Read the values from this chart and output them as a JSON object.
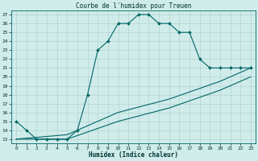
{
  "title": "Courbe de l'humidex pour Treuen",
  "xlabel": "Humidex (Indice chaleur)",
  "bg_color": "#d0ecea",
  "line_color": "#006666",
  "grid_color": "#b0d4d0",
  "xlim": [
    -0.5,
    23.5
  ],
  "ylim": [
    12.5,
    27.5
  ],
  "xticks": [
    0,
    1,
    2,
    3,
    4,
    5,
    6,
    7,
    8,
    9,
    10,
    11,
    12,
    13,
    14,
    15,
    16,
    17,
    18,
    19,
    20,
    21,
    22,
    23
  ],
  "yticks": [
    13,
    14,
    15,
    16,
    17,
    18,
    19,
    20,
    21,
    22,
    23,
    24,
    25,
    26,
    27
  ],
  "main_line": {
    "x": [
      0,
      1,
      2,
      3,
      4,
      5,
      6,
      7,
      8,
      9,
      10,
      11,
      12,
      13,
      14,
      15,
      16,
      17,
      18,
      19,
      20,
      21,
      22,
      23
    ],
    "y": [
      15,
      14,
      13,
      13,
      13,
      13,
      14,
      18,
      23,
      24,
      26,
      26,
      27,
      27,
      26,
      26,
      25,
      25,
      22,
      21,
      21,
      21,
      21,
      21
    ]
  },
  "line2": {
    "x": [
      0,
      5,
      10,
      15,
      20,
      23
    ],
    "y": [
      13,
      13.5,
      16,
      17.5,
      19.5,
      21
    ]
  },
  "line3": {
    "x": [
      0,
      5,
      10,
      15,
      20,
      23
    ],
    "y": [
      13,
      13,
      15,
      16.5,
      18.5,
      20
    ]
  }
}
